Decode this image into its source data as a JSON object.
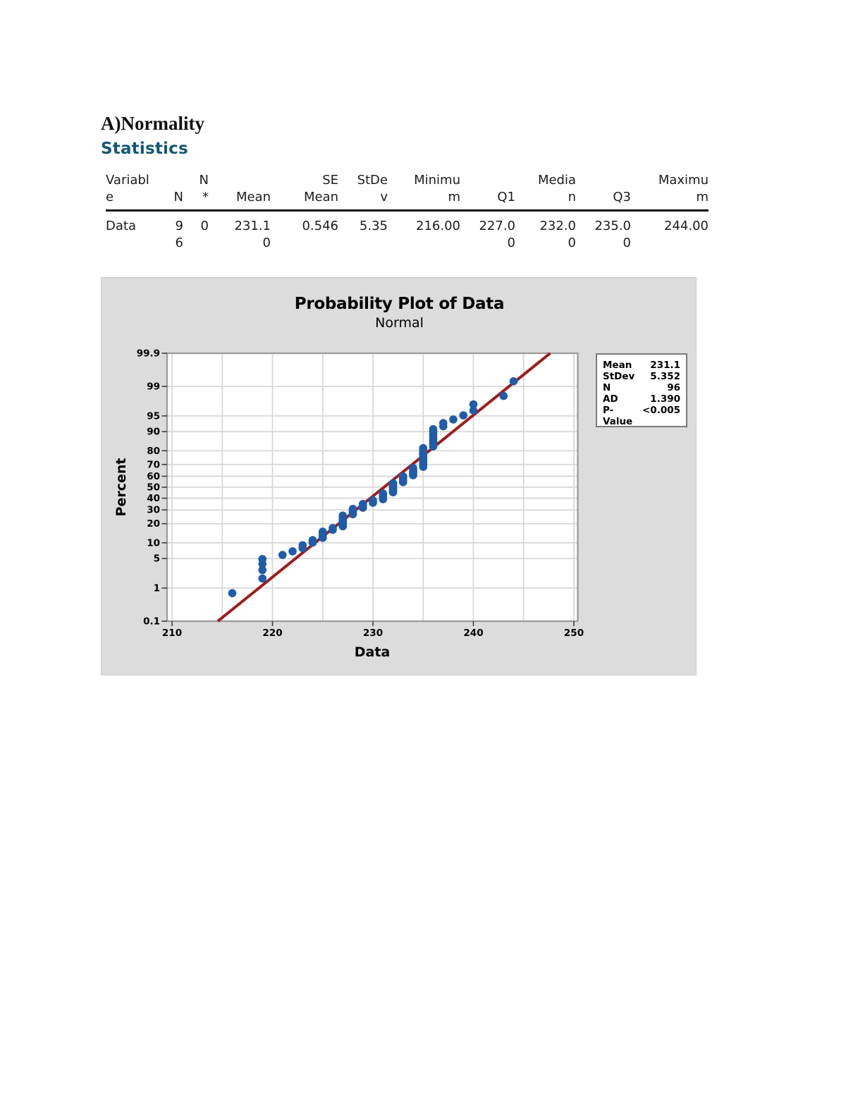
{
  "document": {
    "section_title": "A)Normality",
    "subsection_title": "Statistics"
  },
  "stats_table": {
    "columns": [
      {
        "header": "Variabl\ne",
        "value": "Data"
      },
      {
        "header": "\nN",
        "value": "9\n6"
      },
      {
        "header": "N\n*",
        "value": "0"
      },
      {
        "header": "\nMean",
        "value": "231.1\n0"
      },
      {
        "header": "SE\nMean",
        "value": "0.546"
      },
      {
        "header": "StDe\nv",
        "value": "5.35"
      },
      {
        "header": "Minimu\nm",
        "value": "216.00"
      },
      {
        "header": "\nQ1",
        "value": "227.0\n0"
      },
      {
        "header": "Media\nn",
        "value": "232.0\n0"
      },
      {
        "header": "\nQ3",
        "value": "235.0\n0"
      },
      {
        "header": "Maximu\nm",
        "value": "244.00"
      }
    ]
  },
  "chart_data": {
    "type": "scatter",
    "title": "Probability Plot of Data",
    "subtitle": "Normal",
    "xlabel": "Data",
    "ylabel": "Percent",
    "x_ticks": [
      210,
      220,
      230,
      240,
      250
    ],
    "x_gridline_step": 5,
    "xlim": [
      209.5,
      250.4
    ],
    "y_scale": "normal-probability",
    "y_ticks_percent": [
      "0.1",
      "1",
      "5",
      "10",
      "20",
      "30",
      "40",
      "50",
      "60",
      "70",
      "80",
      "90",
      "95",
      "99",
      "99.9"
    ],
    "n": 96,
    "plotting_position": "(i - 0.3) / (n + 0.4)",
    "values_frequency": [
      {
        "value": 216,
        "count": 1
      },
      {
        "value": 219,
        "count": 4
      },
      {
        "value": 221,
        "count": 1
      },
      {
        "value": 222,
        "count": 1
      },
      {
        "value": 223,
        "count": 2
      },
      {
        "value": 224,
        "count": 2
      },
      {
        "value": 225,
        "count": 4
      },
      {
        "value": 226,
        "count": 2
      },
      {
        "value": 227,
        "count": 8
      },
      {
        "value": 228,
        "count": 5
      },
      {
        "value": 229,
        "count": 4
      },
      {
        "value": 230,
        "count": 3
      },
      {
        "value": 231,
        "count": 6
      },
      {
        "value": 232,
        "count": 9
      },
      {
        "value": 233,
        "count": 6
      },
      {
        "value": 234,
        "count": 7
      },
      {
        "value": 235,
        "count": 14
      },
      {
        "value": 236,
        "count": 9
      },
      {
        "value": 237,
        "count": 2
      },
      {
        "value": 238,
        "count": 1
      },
      {
        "value": 239,
        "count": 1
      },
      {
        "value": 240,
        "count": 2
      },
      {
        "value": 243,
        "count": 1
      },
      {
        "value": 244,
        "count": 1
      }
    ],
    "fit_line": {
      "mean": 231.1,
      "stdev": 5.352
    },
    "legend": {
      "rows": [
        {
          "label": "Mean",
          "value": "231.1"
        },
        {
          "label": "StDev",
          "value": "5.352"
        },
        {
          "label": "N",
          "value": "96"
        },
        {
          "label": "AD",
          "value": "1.390"
        },
        {
          "label": "P-Value",
          "value": "<0.005"
        }
      ]
    },
    "colors": {
      "point": "#1f5ca9",
      "fit_line": "#9e1c1c",
      "panel_bg": "#dcdcdc",
      "plot_bg": "#ffffff",
      "grid": "#d8d8d8",
      "frame": "#9e9e9e",
      "tick": "#3d3d3d",
      "heading": "#155775"
    }
  }
}
